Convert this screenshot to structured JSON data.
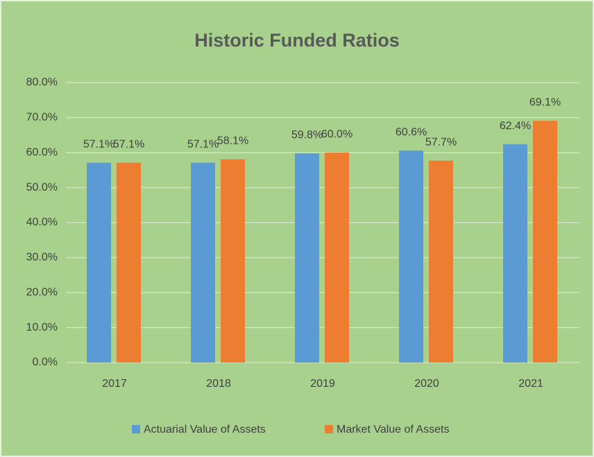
{
  "chart_data": {
    "type": "bar",
    "title": "Historic Funded Ratios",
    "categories": [
      "2017",
      "2018",
      "2019",
      "2020",
      "2021"
    ],
    "series": [
      {
        "name": "Actuarial Value of Assets",
        "color": "#5b9bd5",
        "values": [
          57.1,
          57.1,
          59.8,
          60.6,
          62.4
        ],
        "value_labels": [
          "57.1%",
          "57.1%",
          "59.8%",
          "60.6%",
          "62.4%"
        ]
      },
      {
        "name": "Market Value of Assets",
        "color": "#ed7d31",
        "values": [
          57.1,
          58.1,
          60.0,
          57.7,
          69.1
        ],
        "value_labels": [
          "57.1%",
          "58.1%",
          "60.0%",
          "57.7%",
          "69.1%"
        ]
      }
    ],
    "ylim": [
      0,
      80
    ],
    "yticks": [
      {
        "value": 0,
        "label": "0.0%"
      },
      {
        "value": 10,
        "label": "10.0%"
      },
      {
        "value": 20,
        "label": "20.0%"
      },
      {
        "value": 30,
        "label": "30.0%"
      },
      {
        "value": 40,
        "label": "40.0%"
      },
      {
        "value": 50,
        "label": "50.0%"
      },
      {
        "value": 60,
        "label": "60.0%"
      },
      {
        "value": 70,
        "label": "70.0%"
      },
      {
        "value": 80,
        "label": "80.0%"
      }
    ],
    "grid": true,
    "legend": "bottom"
  }
}
